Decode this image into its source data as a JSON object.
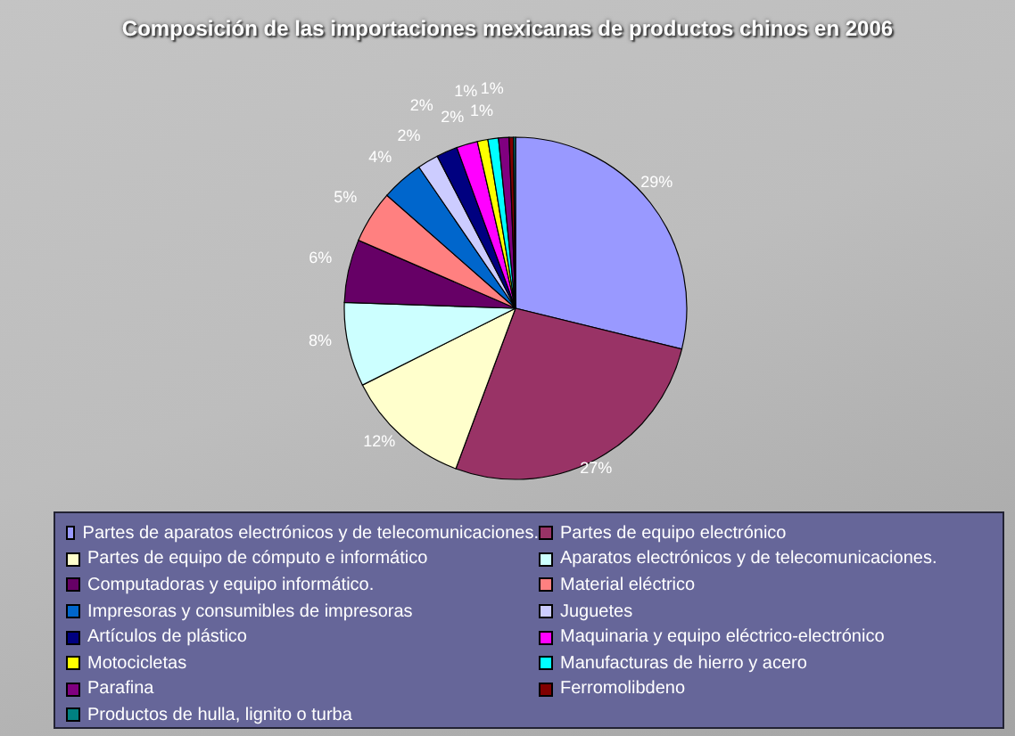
{
  "chart_data": {
    "type": "pie",
    "title": "Composición de las importaciones mexicanas de productos chinos en 2006",
    "categories": [
      "Partes de aparatos electrónicos y de telecomunicaciones.",
      "Partes de equipo electrónico",
      "Partes de equipo de cómputo e informático",
      "Aparatos electrónicos y de telecomunicaciones.",
      "Computadoras y equipo informático.",
      "Material eléctrico",
      "Impresoras y consumibles de impresoras",
      "Juguetes",
      "Artículos de plástico",
      "Maquinaria y equipo eléctrico-electrónico",
      "Motocicletas",
      "Manufacturas de hierro y acero",
      "Parafina",
      "Ferromolibdeno",
      "Productos de hulla, lignito o turba"
    ],
    "values": [
      29,
      27,
      12,
      8,
      6,
      5,
      4,
      2,
      2,
      2,
      1,
      1,
      1,
      0.4,
      0.2
    ],
    "value_labels": [
      "29%",
      "27%",
      "12%",
      "8%",
      "6%",
      "5%",
      "4%",
      "2%",
      "2%",
      "2%",
      "1%",
      "1%",
      "1%",
      null,
      null
    ],
    "colors": [
      "#9999ff",
      "#993366",
      "#ffffcc",
      "#ccffff",
      "#660066",
      "#ff8080",
      "#0066cc",
      "#ccccff",
      "#000080",
      "#ff00ff",
      "#ffff00",
      "#00ffff",
      "#800080",
      "#800000",
      "#008080"
    ],
    "legend": "bottom"
  }
}
